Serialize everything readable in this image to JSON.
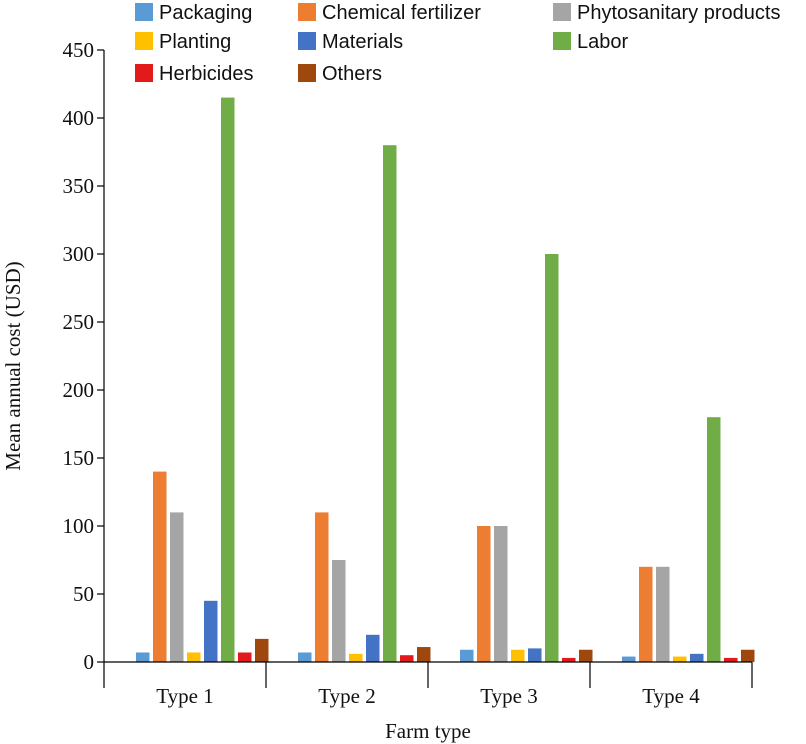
{
  "chart_data": {
    "type": "bar",
    "title": "",
    "xlabel": "Farm type",
    "ylabel": "Mean annual cost (USD)",
    "ylim": [
      0,
      450
    ],
    "yticks": [
      "0",
      "50",
      "100",
      "150",
      "200",
      "250",
      "300",
      "350",
      "400",
      "450"
    ],
    "categories": [
      "Type 1",
      "Type 2",
      "Type 3",
      "Type 4"
    ],
    "legend_position": "top",
    "grid": false,
    "series": [
      {
        "name": "Packaging",
        "color": "#5b9bd5",
        "values": [
          7,
          7,
          9,
          4
        ]
      },
      {
        "name": "Chemical fertilizer",
        "color": "#ed7d31",
        "values": [
          140,
          110,
          100,
          70
        ]
      },
      {
        "name": "Phytosanitary products",
        "color": "#a5a5a5",
        "values": [
          110,
          75,
          100,
          70
        ]
      },
      {
        "name": "Planting",
        "color": "#ffc000",
        "values": [
          7,
          6,
          9,
          4
        ]
      },
      {
        "name": "Materials",
        "color": "#4472c4",
        "values": [
          45,
          20,
          10,
          6
        ]
      },
      {
        "name": "Labor",
        "color": "#70ad47",
        "values": [
          415,
          380,
          300,
          180
        ]
      },
      {
        "name": "Herbicides",
        "color": "#e31a1c",
        "values": [
          7,
          5,
          3,
          3
        ]
      },
      {
        "name": "Others",
        "color": "#9e480e",
        "values": [
          17,
          11,
          9,
          9
        ]
      }
    ]
  }
}
